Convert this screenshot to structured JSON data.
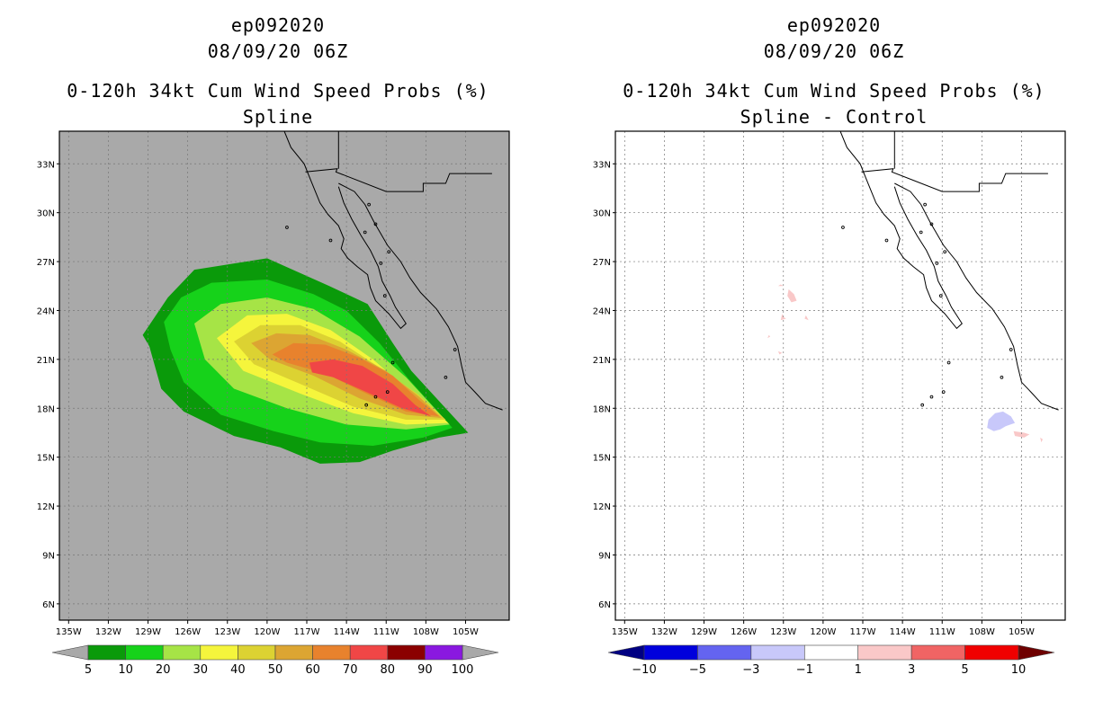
{
  "chart_data": [
    {
      "type": "contour-map",
      "storm_id": "ep092020",
      "datetime": "08/09/20 06Z",
      "title": "0-120h 34kt Cum Wind Speed Probs (%)",
      "subtitle": "Spline",
      "x_ticks": [
        "135W",
        "132W",
        "129W",
        "126W",
        "123W",
        "120W",
        "117W",
        "114W",
        "111W",
        "108W",
        "105W"
      ],
      "y_ticks": [
        "33N",
        "30N",
        "27N",
        "24N",
        "21N",
        "18N",
        "15N",
        "12N",
        "9N",
        "6N"
      ],
      "xlim": [
        -135.7,
        -101.7
      ],
      "ylim": [
        5,
        35
      ],
      "grid": true,
      "background_color": "#a9a9a9",
      "colorbar": {
        "levels": [
          "5",
          "10",
          "20",
          "30",
          "40",
          "50",
          "60",
          "70",
          "80",
          "90",
          "100"
        ],
        "colors": [
          "#0a9a0a",
          "#16d21a",
          "#a6e446",
          "#f5f53c",
          "#dcd232",
          "#dca532",
          "#e8822d",
          "#f04646",
          "#8b0000",
          "#8a18e0"
        ],
        "under_color": "#a9a9a9",
        "over_color": "#a9a9a9"
      },
      "contours": [
        {
          "level": 5,
          "color": "#0a9a0a",
          "polygon": [
            [
              -129.4,
              22.5
            ],
            [
              -127.5,
              24.8
            ],
            [
              -125.5,
              26.5
            ],
            [
              -120,
              27.2
            ],
            [
              -115.3,
              25.5
            ],
            [
              -112.4,
              24.4
            ],
            [
              -110.5,
              22
            ],
            [
              -109.1,
              20.3
            ],
            [
              -104.8,
              16.5
            ],
            [
              -107,
              16.2
            ],
            [
              -110.5,
              15.4
            ],
            [
              -113,
              14.7
            ],
            [
              -116,
              14.6
            ],
            [
              -119,
              15.6
            ],
            [
              -122.5,
              16.3
            ],
            [
              -126.3,
              17.8
            ],
            [
              -128,
              19.2
            ],
            [
              -128.9,
              21.8
            ]
          ]
        },
        {
          "level": 10,
          "color": "#16d21a",
          "polygon": [
            [
              -127.8,
              23.3
            ],
            [
              -126.5,
              24.8
            ],
            [
              -124.2,
              25.7
            ],
            [
              -120,
              25.9
            ],
            [
              -116.5,
              25
            ],
            [
              -114,
              24
            ],
            [
              -111.5,
              22
            ],
            [
              -109.3,
              19.8
            ],
            [
              -106,
              16.8
            ],
            [
              -108.2,
              16.2
            ],
            [
              -112,
              15.7
            ],
            [
              -116,
              15.9
            ],
            [
              -119.5,
              16.6
            ],
            [
              -123.5,
              17.6
            ],
            [
              -126.3,
              19.6
            ],
            [
              -127.3,
              21.6
            ]
          ]
        },
        {
          "level": 20,
          "color": "#a6e446",
          "polygon": [
            [
              -125.5,
              23.2
            ],
            [
              -123.5,
              24.4
            ],
            [
              -120,
              24.8
            ],
            [
              -116.5,
              24.1
            ],
            [
              -113,
              22.4
            ],
            [
              -109.5,
              19.9
            ],
            [
              -106.2,
              17
            ],
            [
              -109.5,
              16.7
            ],
            [
              -114,
              17
            ],
            [
              -118.5,
              18
            ],
            [
              -122.5,
              19.2
            ],
            [
              -124.7,
              21
            ]
          ]
        },
        {
          "level": 30,
          "color": "#f5f53c",
          "polygon": [
            [
              -123.8,
              22.3
            ],
            [
              -121.5,
              23.7
            ],
            [
              -118.5,
              23.8
            ],
            [
              -115.2,
              22.8
            ],
            [
              -112,
              21
            ],
            [
              -109,
              18.9
            ],
            [
              -106.3,
              17.1
            ],
            [
              -109.5,
              17
            ],
            [
              -113.5,
              17.7
            ],
            [
              -117.5,
              18.9
            ],
            [
              -121.8,
              20.3
            ]
          ]
        },
        {
          "level": 40,
          "color": "#dcd232",
          "polygon": [
            [
              -122.5,
              22.1
            ],
            [
              -120.5,
              23.1
            ],
            [
              -117.5,
              23.1
            ],
            [
              -114.5,
              22.1
            ],
            [
              -111.5,
              20.5
            ],
            [
              -108.5,
              18.8
            ],
            [
              -106.5,
              17.3
            ],
            [
              -109.5,
              17.3
            ],
            [
              -113.5,
              18.1
            ],
            [
              -117.5,
              19.5
            ],
            [
              -121,
              20.7
            ]
          ]
        },
        {
          "level": 50,
          "color": "#dca532",
          "polygon": [
            [
              -121.2,
              22
            ],
            [
              -119.3,
              22.6
            ],
            [
              -116.8,
              22.5
            ],
            [
              -114,
              21.6
            ],
            [
              -111,
              20.3
            ],
            [
              -108.5,
              18.7
            ],
            [
              -106.8,
              17.4
            ],
            [
              -109.5,
              17.6
            ],
            [
              -113,
              18.6
            ],
            [
              -116.5,
              20
            ],
            [
              -119.8,
              21
            ]
          ]
        },
        {
          "level": 60,
          "color": "#e8822d",
          "polygon": [
            [
              -119.6,
              21.3
            ],
            [
              -118,
              22
            ],
            [
              -115.6,
              21.9
            ],
            [
              -113,
              21.1
            ],
            [
              -110.5,
              20
            ],
            [
              -108.5,
              18.5
            ],
            [
              -107,
              17.5
            ],
            [
              -109.5,
              17.8
            ],
            [
              -112.5,
              18.9
            ],
            [
              -115.5,
              20.1
            ],
            [
              -118.5,
              20.8
            ]
          ]
        },
        {
          "level": 70,
          "color": "#f04646",
          "polygon": [
            [
              -116.8,
              20.8
            ],
            [
              -115,
              21
            ],
            [
              -112.8,
              20.6
            ],
            [
              -110.5,
              19.5
            ],
            [
              -108.8,
              18.2
            ],
            [
              -107.6,
              17.5
            ],
            [
              -109.8,
              18
            ],
            [
              -112.5,
              19
            ],
            [
              -115,
              19.9
            ],
            [
              -116.6,
              20.2
            ]
          ]
        }
      ],
      "land": {
        "baja_coast": [
          [
            -118.7,
            35
          ],
          [
            -118.2,
            34
          ],
          [
            -117.2,
            33
          ],
          [
            -116.8,
            32.2
          ],
          [
            -116.4,
            31.4
          ],
          [
            -116,
            30.6
          ],
          [
            -115.4,
            29.9
          ],
          [
            -114.6,
            29.2
          ],
          [
            -114.2,
            28.4
          ],
          [
            -114.4,
            27.8
          ],
          [
            -113.9,
            27.2
          ],
          [
            -113.2,
            26.7
          ],
          [
            -112.4,
            26.2
          ],
          [
            -112.2,
            25.4
          ],
          [
            -111.8,
            24.6
          ],
          [
            -110.8,
            23.8
          ],
          [
            -109.9,
            22.9
          ],
          [
            -109.5,
            23.2
          ],
          [
            -110.3,
            24.2
          ],
          [
            -110.7,
            24.9
          ],
          [
            -111.3,
            25.8
          ],
          [
            -111.6,
            26.7
          ],
          [
            -112.2,
            27.7
          ],
          [
            -112.9,
            28.6
          ],
          [
            -113.6,
            29.6
          ],
          [
            -114.2,
            30.6
          ],
          [
            -114.6,
            31.6
          ]
        ],
        "mainland_coast": [
          [
            -114.6,
            31.8
          ],
          [
            -113.4,
            31.3
          ],
          [
            -112.6,
            30.5
          ],
          [
            -111.9,
            29.4
          ],
          [
            -110.9,
            28
          ],
          [
            -109.9,
            27
          ],
          [
            -109.2,
            26
          ],
          [
            -108.4,
            25.1
          ],
          [
            -107.2,
            24.1
          ],
          [
            -106.3,
            23
          ],
          [
            -105.6,
            21.8
          ],
          [
            -105.3,
            20.6
          ],
          [
            -105,
            19.6
          ],
          [
            -104.3,
            19
          ],
          [
            -103.5,
            18.3
          ],
          [
            -102.2,
            17.9
          ]
        ],
        "border": [
          [
            -117.1,
            32.5
          ],
          [
            -114.7,
            32.7
          ],
          [
            -114.8,
            32.5
          ],
          [
            -111,
            31.3
          ],
          [
            -108.2,
            31.3
          ],
          [
            -108.2,
            31.8
          ],
          [
            -106.5,
            31.8
          ],
          [
            -106.2,
            32.4
          ],
          [
            -103,
            32.4
          ]
        ],
        "state_line": [
          [
            -114.6,
            32.7
          ],
          [
            -114.6,
            35
          ]
        ],
        "islands": [
          [
            -118.5,
            29.1
          ],
          [
            -115.2,
            28.3
          ],
          [
            -111.8,
            29.3
          ],
          [
            -112.6,
            28.8
          ],
          [
            -110.8,
            27.6
          ],
          [
            -111.1,
            24.9
          ],
          [
            -111.4,
            26.9
          ],
          [
            -112.3,
            30.5
          ],
          [
            -110.5,
            20.8
          ],
          [
            -105.8,
            21.6
          ],
          [
            -110.9,
            19.0
          ],
          [
            -106.5,
            19.9
          ],
          [
            -111.8,
            18.7
          ],
          [
            -112.5,
            18.2
          ]
        ]
      }
    },
    {
      "type": "contour-map",
      "storm_id": "ep092020",
      "datetime": "08/09/20 06Z",
      "title": "0-120h 34kt Cum Wind Speed Probs (%)",
      "subtitle": "Spline - Control",
      "x_ticks": [
        "135W",
        "132W",
        "129W",
        "126W",
        "123W",
        "120W",
        "117W",
        "114W",
        "111W",
        "108W",
        "105W"
      ],
      "y_ticks": [
        "33N",
        "30N",
        "27N",
        "24N",
        "21N",
        "18N",
        "15N",
        "12N",
        "9N",
        "6N"
      ],
      "xlim": [
        -135.7,
        -101.7
      ],
      "ylim": [
        5,
        35
      ],
      "grid": true,
      "background_color": "#ffffff",
      "colorbar": {
        "levels": [
          "-10",
          "-5",
          "-3",
          "-1",
          "1",
          "3",
          "5",
          "10"
        ],
        "colors": [
          "#0000dc",
          "#6464f0",
          "#c8c8fa",
          "#ffffff",
          "#fac8c8",
          "#f06464",
          "#f00000"
        ],
        "under_color": "#000082",
        "over_color": "#6e0000"
      },
      "features": [
        {
          "category": "1 to 3",
          "color": "#f9c8c8",
          "polygon": [
            [
              -122.6,
              25.3
            ],
            [
              -122.2,
              25
            ],
            [
              -122,
              24.6
            ],
            [
              -122.4,
              24.5
            ],
            [
              -122.7,
              24.9
            ]
          ]
        },
        {
          "category": "1 to 3",
          "color": "#f9c8c8",
          "polygon": [
            [
              -123.1,
              23.8
            ],
            [
              -123.0,
              23.6
            ],
            [
              -122.8,
              23.5
            ],
            [
              -123.2,
              23.4
            ]
          ]
        },
        {
          "category": "1 to 3",
          "color": "#f9c8c8",
          "polygon": [
            [
              -121.3,
              23.7
            ],
            [
              -121.1,
              23.4
            ],
            [
              -121.4,
              23.5
            ]
          ]
        },
        {
          "category": "1 to 3",
          "color": "#f9c8c8",
          "polygon": [
            [
              -123.4,
              25.5
            ],
            [
              -123.0,
              25.5
            ],
            [
              -123.2,
              25.6
            ]
          ]
        },
        {
          "category": "1 to 3",
          "color": "#f9c8c8",
          "polygon": [
            [
              -124.1,
              22.5
            ],
            [
              -124.0,
              22.4
            ],
            [
              -124.2,
              22.3
            ]
          ]
        },
        {
          "category": "1 to 3",
          "color": "#f9c8c8",
          "polygon": [
            [
              -123.4,
              21.5
            ],
            [
              -123.1,
              21.4
            ],
            [
              -123.3,
              21.3
            ]
          ]
        },
        {
          "category": "1 to 3",
          "color": "#f9c8c8",
          "polygon": [
            [
              -105.6,
              16.6
            ],
            [
              -104.8,
              16.5
            ],
            [
              -104.4,
              16.4
            ],
            [
              -104.8,
              16.2
            ],
            [
              -105.5,
              16.3
            ]
          ]
        },
        {
          "category": "1 to 3",
          "color": "#f9c8c8",
          "polygon": [
            [
              -103.6,
              16.2
            ],
            [
              -103.4,
              16.1
            ],
            [
              -103.5,
              15.9
            ]
          ]
        },
        {
          "category": "-3 to -1",
          "color": "#c8c8fa",
          "polygon": [
            [
              -107.5,
              17.3
            ],
            [
              -107,
              17.7
            ],
            [
              -106.4,
              17.8
            ],
            [
              -105.8,
              17.5
            ],
            [
              -105.5,
              17.1
            ],
            [
              -106.2,
              16.9
            ],
            [
              -106.6,
              16.7
            ],
            [
              -107.1,
              16.6
            ],
            [
              -107.6,
              16.8
            ]
          ]
        }
      ],
      "land": "same as first panel"
    }
  ]
}
